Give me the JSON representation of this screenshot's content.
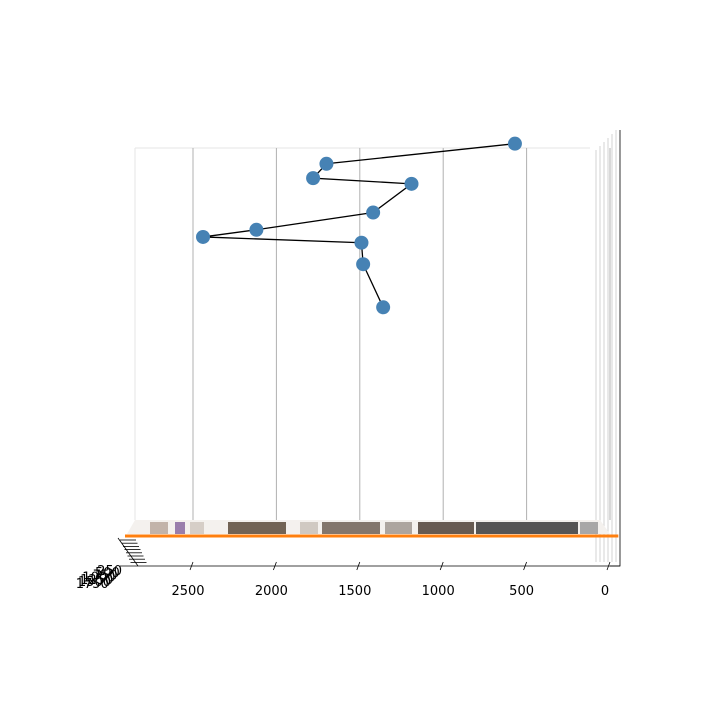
{
  "chart_data": {
    "type": "scatter",
    "subtype": "3d-scatter-with-connecting-line",
    "view": "side view looking along the y axis",
    "title": "",
    "xlabel": "",
    "ylabel": "",
    "zlabel": "",
    "x_ticks": [
      "2500",
      "2000",
      "1500",
      "1000",
      "500",
      "0"
    ],
    "x_tick_values": [
      2500,
      2000,
      1500,
      1000,
      500,
      0
    ],
    "xlim": [
      2850,
      -50
    ],
    "y_ticks": [
      "250",
      "500",
      "750",
      "1000",
      "1250",
      "1500",
      "1750"
    ],
    "grid": true,
    "legend": "none",
    "colors": {
      "points": "#4682b4",
      "line": "#000000",
      "plane_edge": "#ff7f0e",
      "grid": "#b0b0b0"
    },
    "series": [
      {
        "marker": "circle",
        "line": "connected in order",
        "x": [
          570,
          1700,
          1780,
          1190,
          1420,
          2120,
          2440,
          1490,
          1480,
          1360
        ],
        "z": [
          2.72,
          2.58,
          2.48,
          2.44,
          2.24,
          2.12,
          2.07,
          2.03,
          1.88,
          1.58
        ]
      }
    ],
    "zlim": [
      0,
      3
    ],
    "image_plane": {
      "description": "screenshot images laid flat on the z=0 floor",
      "x_range": [
        0,
        2850
      ]
    }
  }
}
